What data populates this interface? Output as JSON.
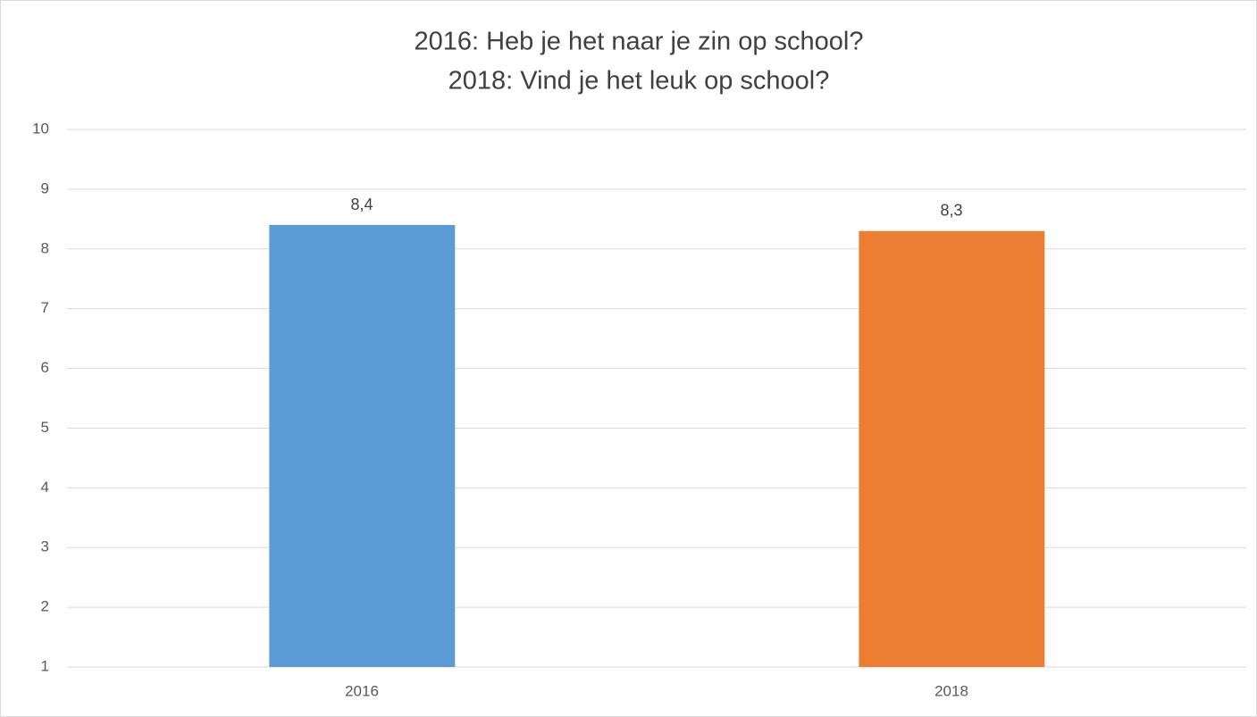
{
  "chart_data": {
    "type": "bar",
    "title": [
      "2016: Heb je het naar je zin op school?",
      "2018: Vind je het leuk op school?"
    ],
    "categories": [
      "2016",
      "2018"
    ],
    "values": [
      8.4,
      8.3
    ],
    "value_labels": [
      "8,4",
      "8,3"
    ],
    "colors": [
      "#5b9bd5",
      "#ed7d31"
    ],
    "ylim": [
      1,
      10
    ],
    "yticks": [
      1,
      2,
      3,
      4,
      5,
      6,
      7,
      8,
      9,
      10
    ],
    "grid": true
  }
}
